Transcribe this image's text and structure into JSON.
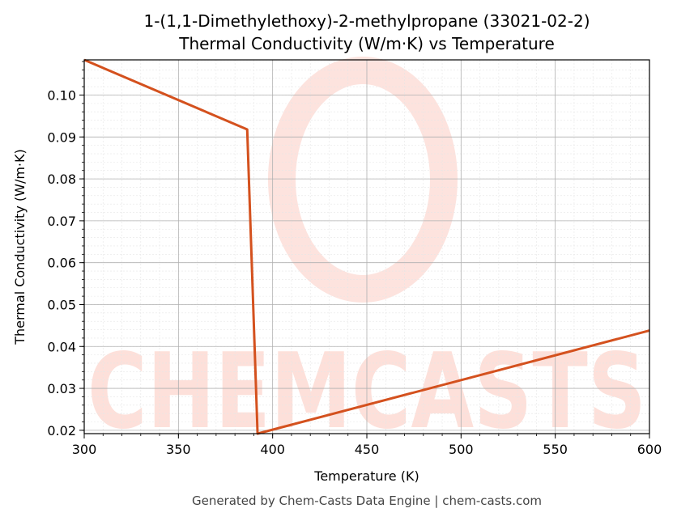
{
  "chart_data": {
    "type": "line",
    "title_line1": "1-(1,1-Dimethylethoxy)-2-methylpropane (33021-02-2)",
    "title_line2": "Thermal Conductivity (W/m·K) vs Temperature",
    "xlabel": "Temperature (K)",
    "ylabel": "Thermal Conductivity (W/m·K)",
    "xlim": [
      300,
      600
    ],
    "ylim": [
      0.0192,
      0.1084
    ],
    "x_ticks": [
      300,
      350,
      400,
      450,
      500,
      550,
      600
    ],
    "x_tick_labels": [
      "300",
      "350",
      "400",
      "450",
      "500",
      "550",
      "600"
    ],
    "y_ticks": [
      0.02,
      0.03,
      0.04,
      0.05,
      0.06,
      0.07,
      0.08,
      0.09,
      0.1
    ],
    "y_tick_labels": [
      "0.02",
      "0.03",
      "0.04",
      "0.05",
      "0.06",
      "0.07",
      "0.08",
      "0.09",
      "0.10"
    ],
    "grid": true,
    "series": [
      {
        "color": "#d4511e",
        "x": [
          300,
          386.5,
          392,
          600
        ],
        "y": [
          0.1084,
          0.0918,
          0.0192,
          0.0438
        ]
      }
    ]
  },
  "watermark": {
    "text": "CHEMCASTS",
    "color": "#fde0da"
  },
  "footer": "Generated by Chem-Casts Data Engine | chem-casts.com"
}
